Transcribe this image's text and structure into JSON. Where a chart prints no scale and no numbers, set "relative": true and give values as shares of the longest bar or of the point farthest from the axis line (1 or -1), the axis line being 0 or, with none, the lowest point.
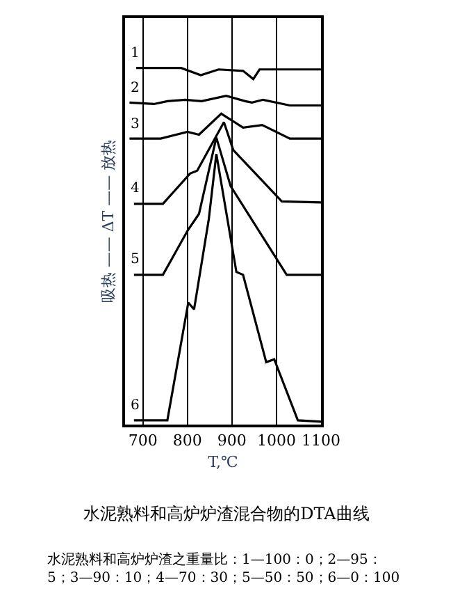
{
  "chart_data": {
    "type": "line",
    "relative": true,
    "title": "水泥熟料和高炉炉渣混合物的DTA曲线",
    "xlabel": "T,℃",
    "ylabel": "吸热 —— ΔT —— 放热",
    "xlim": [
      660,
      1100
    ],
    "xticks": [
      700,
      800,
      900,
      1000,
      1100
    ],
    "grid": "x",
    "legend": false,
    "marker": "none",
    "line_style": "solid",
    "annotations": [
      "水泥熟料和高炉炉渣之重量比：1—100：0；2—95：\n5；3—90：10；4—70：30；5—50：50；6—0：100"
    ],
    "series": [
      {
        "name": "1",
        "color": "#000000",
        "x": [
          685,
          786,
          830,
          870,
          925,
          948,
          962,
          1100
        ],
        "values": [
          1.0,
          1.0,
          0.98,
          0.996,
          0.992,
          0.969,
          0.996,
          0.996
        ]
      },
      {
        "name": "2",
        "color": "#000000",
        "x": [
          670,
          725,
          755,
          795,
          832,
          887,
          930,
          945,
          970,
          1030,
          1100
        ],
        "values": [
          0.903,
          0.899,
          0.907,
          0.911,
          0.907,
          0.922,
          0.907,
          0.903,
          0.911,
          0.895,
          0.895
        ]
      },
      {
        "name": "3",
        "color": "#000000",
        "x": [
          670,
          740,
          800,
          826,
          876,
          925,
          968,
          1030,
          1100
        ],
        "values": [
          0.802,
          0.802,
          0.821,
          0.813,
          0.872,
          0.833,
          0.84,
          0.802,
          0.802
        ]
      },
      {
        "name": "4",
        "color": "#000000",
        "x": [
          680,
          745,
          806,
          822,
          882,
          903,
          1012,
          1100
        ],
        "values": [
          0.619,
          0.619,
          0.704,
          0.712,
          0.848,
          0.77,
          0.626,
          0.623
        ]
      },
      {
        "name": "5",
        "color": "#000000",
        "x": [
          680,
          745,
          801,
          826,
          865,
          897,
          1023,
          1100
        ],
        "values": [
          0.42,
          0.42,
          0.545,
          0.591,
          0.805,
          0.669,
          0.42,
          0.42
        ]
      },
      {
        "name": "6",
        "color": "#000000",
        "x": [
          680,
          755,
          802,
          815,
          848,
          865,
          910,
          925,
          977,
          995,
          1048,
          1100
        ],
        "values": [
          0.012,
          0.012,
          0.342,
          0.323,
          0.576,
          0.759,
          0.428,
          0.42,
          0.175,
          0.183,
          0.012,
          0.008
        ]
      }
    ]
  }
}
